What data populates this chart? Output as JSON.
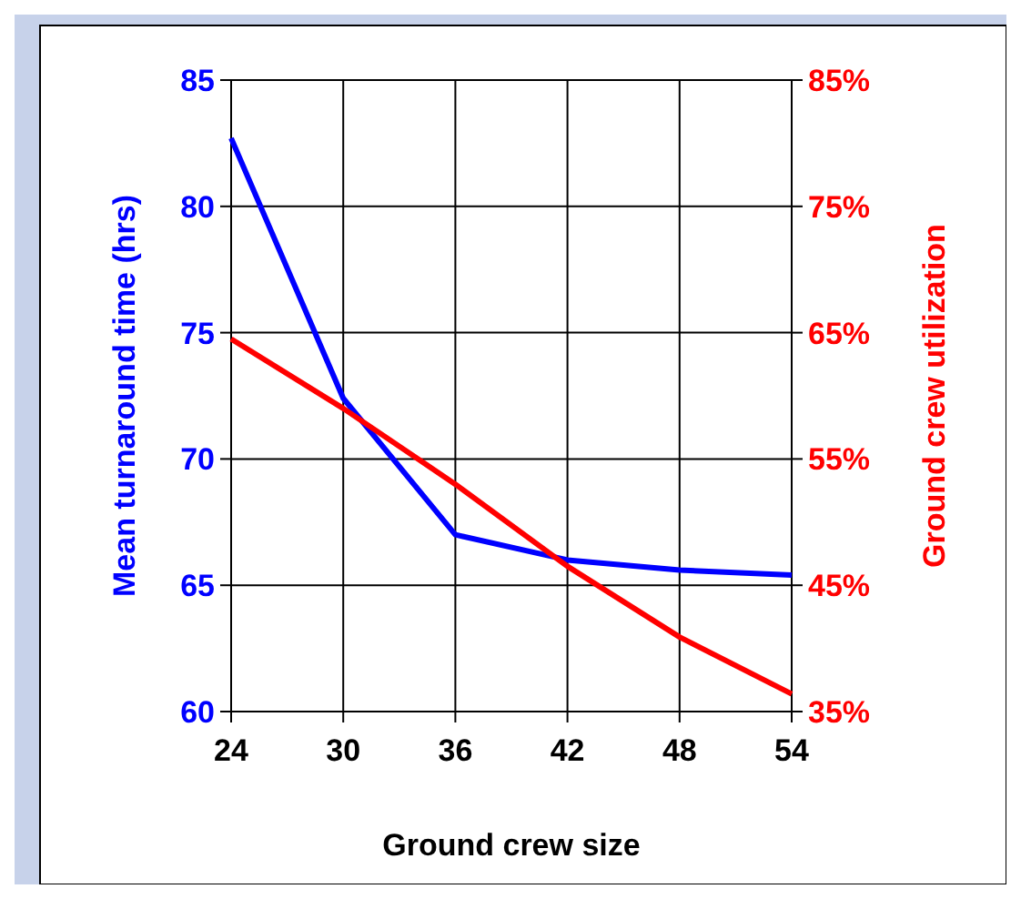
{
  "chart_data": {
    "type": "line",
    "xlabel": "Ground crew size",
    "ylabel": "Mean turnaround time (hrs)",
    "y2label": "Ground crew utilization",
    "x": [
      24,
      30,
      36,
      42,
      48,
      54
    ],
    "xlim": [
      24,
      54
    ],
    "xticks": [
      24,
      30,
      36,
      42,
      48,
      54
    ],
    "ylim": [
      60,
      85
    ],
    "yticks": [
      60,
      65,
      70,
      75,
      80,
      85
    ],
    "y2lim": [
      35,
      85
    ],
    "y2ticks": [
      {
        "value": 35,
        "label": "35%"
      },
      {
        "value": 45,
        "label": "45%"
      },
      {
        "value": 55,
        "label": "55%"
      },
      {
        "value": 65,
        "label": "65%"
      },
      {
        "value": 75,
        "label": "75%"
      },
      {
        "value": 85,
        "label": "85%"
      }
    ],
    "grid": true,
    "marker": "none",
    "series": [
      {
        "color": "#0000ff",
        "values": [
          82.7,
          72.4,
          67.0,
          66.0,
          65.6,
          65.4
        ]
      },
      {
        "color": "#ff0000",
        "axis": "y2",
        "values": [
          64.5,
          59.0,
          53.0,
          46.5,
          40.9,
          36.4
        ]
      }
    ]
  }
}
